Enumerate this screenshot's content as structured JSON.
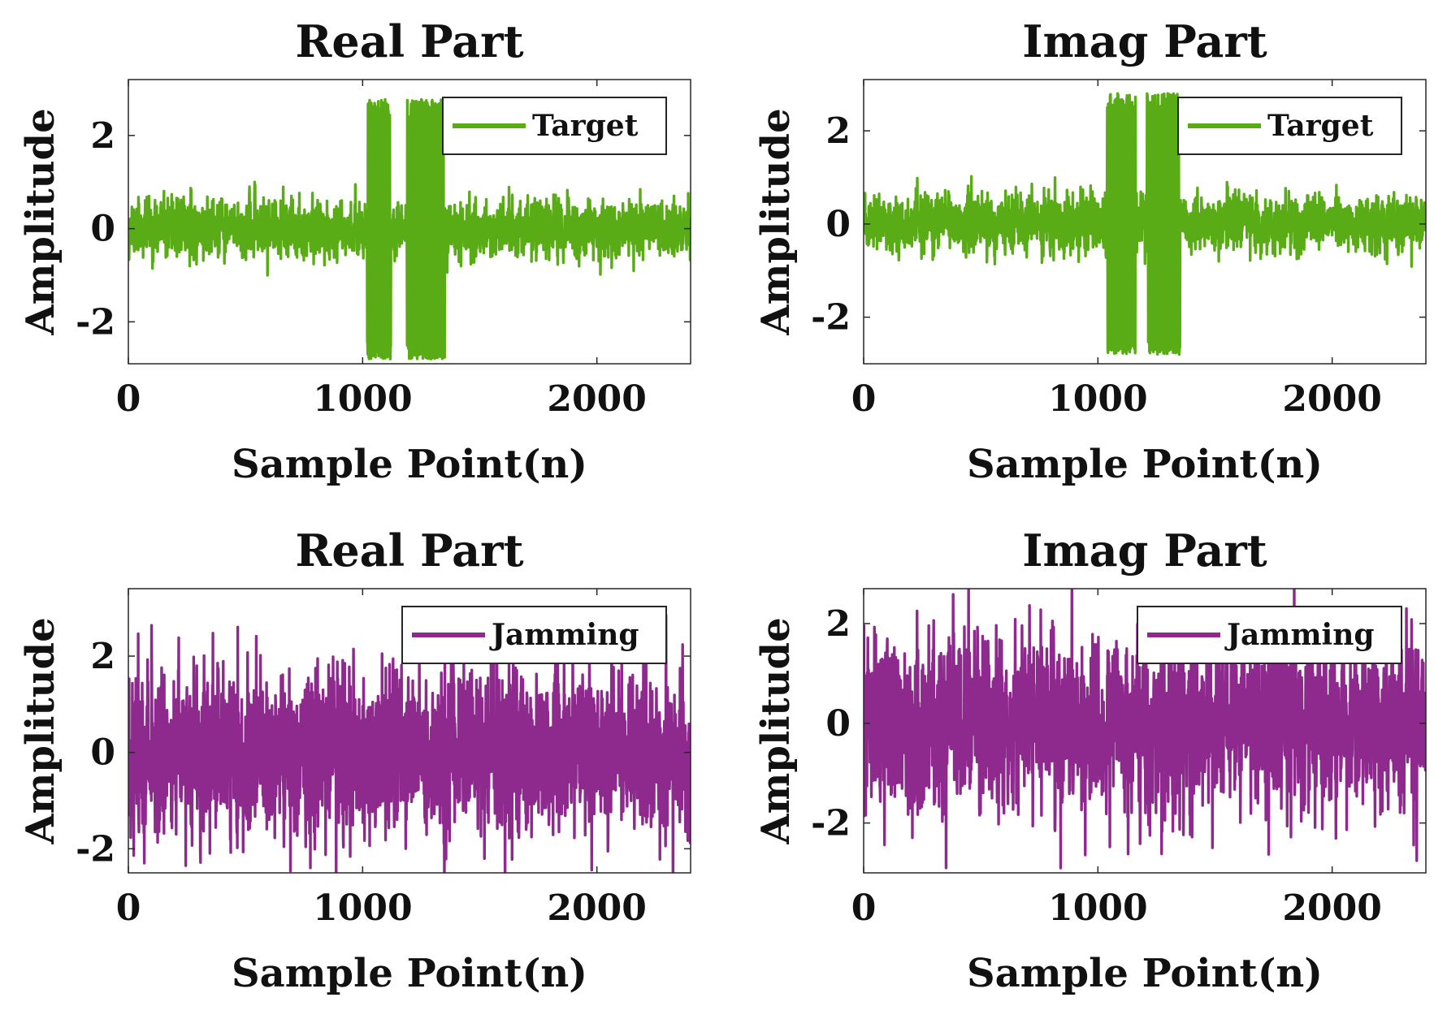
{
  "chart_data": [
    {
      "type": "line",
      "title": "Real Part",
      "xlabel": "Sample Point(n)",
      "ylabel": "Amplitude",
      "xlim": [
        0,
        2400
      ],
      "ylim": [
        -2.9,
        3.2
      ],
      "xticks": [
        0,
        1000,
        2000
      ],
      "xtick_labels": [
        "0",
        "1000",
        "2000"
      ],
      "yticks": [
        -2,
        0,
        2
      ],
      "ytick_labels": [
        "-2",
        "0",
        "2"
      ],
      "legend": "top-right",
      "series": [
        {
          "name": "Target",
          "color": "#5aac16",
          "n_points": 2400,
          "noise_amplitude": 0.3,
          "peak_noise_amplitude": 1.0,
          "burst_segments": [
            [
              1020,
              1120
            ],
            [
              1190,
              1350
            ]
          ],
          "burst_amplitude": 2.8,
          "burst_dropout": [
            1120,
            1190
          ],
          "seed": 11
        }
      ]
    },
    {
      "type": "line",
      "title": "Imag Part",
      "xlabel": "Sample Point(n)",
      "ylabel": "Amplitude",
      "xlim": [
        0,
        2400
      ],
      "ylim": [
        -3.0,
        3.1
      ],
      "xticks": [
        0,
        1000,
        2000
      ],
      "xtick_labels": [
        "0",
        "1000",
        "2000"
      ],
      "yticks": [
        -2,
        0,
        2
      ],
      "ytick_labels": [
        "-2",
        "0",
        "2"
      ],
      "legend": "top-right",
      "series": [
        {
          "name": "Target",
          "color": "#5aac16",
          "n_points": 2400,
          "noise_amplitude": 0.3,
          "peak_noise_amplitude": 1.1,
          "burst_segments": [
            [
              1040,
              1160
            ],
            [
              1210,
              1350
            ]
          ],
          "burst_amplitude": 2.8,
          "burst_dropout": [
            1160,
            1210
          ],
          "seed": 23
        }
      ]
    },
    {
      "type": "line",
      "title": "Real Part",
      "xlabel": "Sample Point(n)",
      "ylabel": "Amplitude",
      "xlim": [
        0,
        2400
      ],
      "ylim": [
        -2.5,
        3.4
      ],
      "xticks": [
        0,
        1000,
        2000
      ],
      "xtick_labels": [
        "0",
        "1000",
        "2000"
      ],
      "yticks": [
        -2,
        0,
        2
      ],
      "ytick_labels": [
        "-2",
        "0",
        "2"
      ],
      "legend": "top-right",
      "series": [
        {
          "name": "Jamming",
          "color": "#8e2a8e",
          "n_points": 2400,
          "noise_amplitude": 0.85,
          "peak_noise_amplitude": 3.4,
          "burst_segments": [],
          "burst_amplitude": 0,
          "seed": 37
        }
      ]
    },
    {
      "type": "line",
      "title": "Imag Part",
      "xlabel": "Sample Point(n)",
      "ylabel": "Amplitude",
      "xlim": [
        0,
        2400
      ],
      "ylim": [
        -3.0,
        2.7
      ],
      "xticks": [
        0,
        1000,
        2000
      ],
      "xtick_labels": [
        "0",
        "1000",
        "2000"
      ],
      "yticks": [
        -2,
        0,
        2
      ],
      "ytick_labels": [
        "-2",
        "0",
        "2"
      ],
      "legend": "top-right",
      "series": [
        {
          "name": "Jamming",
          "color": "#8e2a8e",
          "n_points": 2400,
          "noise_amplitude": 0.85,
          "peak_noise_amplitude": 3.0,
          "burst_segments": [],
          "burst_amplitude": 0,
          "seed": 53
        }
      ]
    }
  ]
}
